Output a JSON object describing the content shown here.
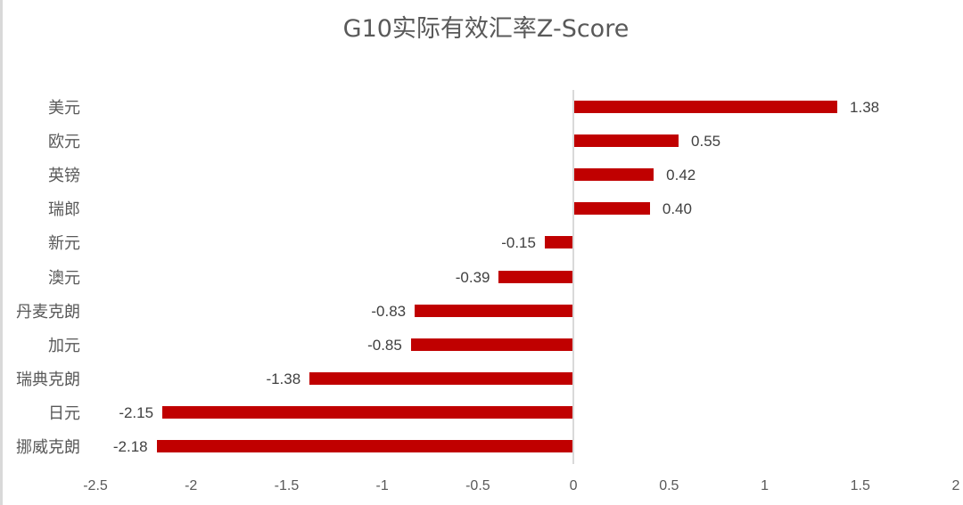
{
  "chart_data": {
    "type": "bar",
    "orientation": "horizontal",
    "title": "G10实际有效汇率Z-Score",
    "categories": [
      "美元",
      "欧元",
      "英镑",
      "瑞郎",
      "新元",
      "澳元",
      "丹麦克朗",
      "加元",
      "瑞典克朗",
      "日元",
      "挪威克朗"
    ],
    "values": [
      1.38,
      0.55,
      0.42,
      0.4,
      -0.15,
      -0.39,
      -0.83,
      -0.85,
      -1.38,
      -2.15,
      -2.18
    ],
    "value_labels": [
      "1.38",
      "0.55",
      "0.42",
      "0.40",
      "-0.15",
      "-0.39",
      "-0.83",
      "-0.85",
      "-1.38",
      "-2.15",
      "-2.18"
    ],
    "xlabel": "",
    "ylabel": "",
    "xlim": [
      -2.5,
      2
    ],
    "x_ticks": [
      "-2.5",
      "-2",
      "-1.5",
      "-1",
      "-0.5",
      "0",
      "0.5",
      "1",
      "1.5",
      "2"
    ],
    "x_tick_values": [
      -2.5,
      -2,
      -1.5,
      -1,
      -0.5,
      0,
      0.5,
      1,
      1.5,
      2
    ],
    "grid": false,
    "legend": "none",
    "bar_color": "#c00000",
    "data_labels": true
  },
  "title": "G10实际有效汇率Z-Score"
}
